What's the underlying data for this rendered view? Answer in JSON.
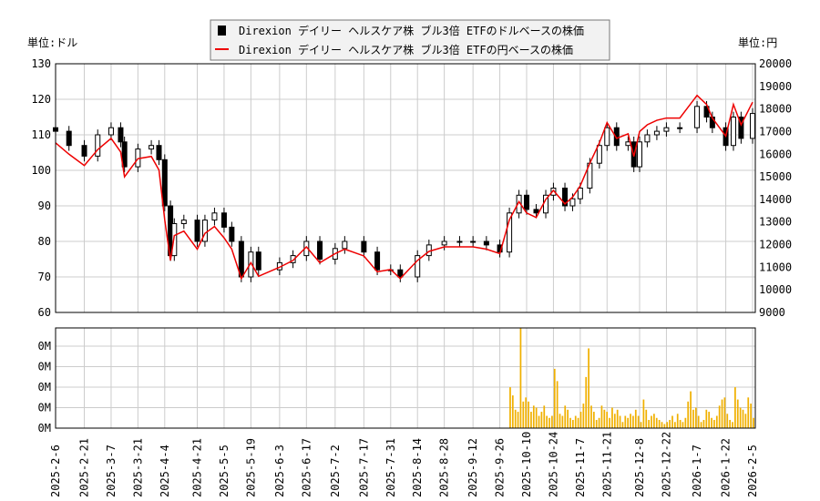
{
  "chart_data": [
    {
      "type": "candlestick+line",
      "title": "",
      "legend": [
        "Direxion デイリー ヘルスケア株 ブル3倍 ETFのドルベースの株価",
        "Direxion デイリー ヘルスケア株 ブル3倍 ETFの円ベースの株価"
      ],
      "legend_placement": "top-center",
      "ylabel_left": "単位:ドル",
      "ylabel_right": "単位:円",
      "ylim_left": [
        60,
        130
      ],
      "yticks_left": [
        "60",
        "70",
        "80",
        "90",
        "100",
        "110",
        "120",
        "130"
      ],
      "ylim_right": [
        9000,
        20000
      ],
      "yticks_right": [
        "9000",
        "10000",
        "11000",
        "12000",
        "13000",
        "14000",
        "15000",
        "16000",
        "17000",
        "18000",
        "19000",
        "20000"
      ],
      "grid": true,
      "dates": [
        "2025-2-6",
        "2025-2-13",
        "2025-2-21",
        "2025-2-28",
        "2025-3-7",
        "2025-3-12",
        "2025-3-14",
        "2025-3-21",
        "2025-3-28",
        "2025-4-1",
        "2025-4-4",
        "2025-4-7",
        "2025-4-9",
        "2025-4-14",
        "2025-4-21",
        "2025-4-25",
        "2025-4-30",
        "2025-5-5",
        "2025-5-9",
        "2025-5-14",
        "2025-5-19",
        "2025-5-23",
        "2025-6-3",
        "2025-6-10",
        "2025-6-17",
        "2025-6-24",
        "2025-7-2",
        "2025-7-7",
        "2025-7-17",
        "2025-7-24",
        "2025-7-31",
        "2025-8-5",
        "2025-8-14",
        "2025-8-20",
        "2025-8-28",
        "2025-9-5",
        "2025-9-12",
        "2025-9-19",
        "2025-9-26",
        "2025-10-1",
        "2025-10-6",
        "2025-10-10",
        "2025-10-15",
        "2025-10-20",
        "2025-10-24",
        "2025-10-30",
        "2025-11-3",
        "2025-11-7",
        "2025-11-12",
        "2025-11-17",
        "2025-11-21",
        "2025-11-26",
        "2025-12-2",
        "2025-12-5",
        "2025-12-8",
        "2025-12-12",
        "2025-12-17",
        "2025-12-22",
        "2025-12-29",
        "2026-1-7",
        "2026-1-12",
        "2026-1-15",
        "2026-1-22",
        "2026-1-26",
        "2026-1-30",
        "2026-2-5"
      ],
      "usd": [
        111,
        107,
        104,
        110,
        112,
        108,
        101,
        106,
        107,
        103,
        90,
        76,
        85,
        86,
        80,
        86,
        88,
        84,
        80,
        70,
        77,
        72,
        74,
        76,
        80,
        75,
        78,
        80,
        77,
        72,
        72,
        70,
        76,
        79,
        80,
        80,
        80,
        79,
        77,
        88,
        93,
        89,
        88,
        93,
        95,
        90,
        92,
        95,
        102,
        107,
        112,
        107,
        108,
        101,
        108,
        110,
        111,
        112,
        112,
        118,
        115,
        112,
        107,
        115,
        109,
        116
      ],
      "jpy": [
        16500,
        16000,
        15500,
        16200,
        16700,
        16100,
        15000,
        15800,
        15900,
        15300,
        13100,
        11300,
        12400,
        12600,
        11800,
        12500,
        12800,
        12300,
        11800,
        10500,
        11200,
        10600,
        11000,
        11300,
        11900,
        11200,
        11600,
        11800,
        11500,
        10800,
        10900,
        10500,
        11300,
        11700,
        11900,
        11900,
        11900,
        11800,
        11600,
        13100,
        13900,
        13400,
        13200,
        14000,
        14400,
        13800,
        14100,
        14600,
        15600,
        16500,
        17400,
        16700,
        16900,
        15900,
        17000,
        17300,
        17500,
        17600,
        17600,
        18600,
        18200,
        17600,
        16800,
        18200,
        17300,
        18300
      ],
      "xticks": [
        "2025-2-6",
        "2025-2-21",
        "2025-3-7",
        "2025-3-21",
        "2025-4-4",
        "2025-4-21",
        "2025-5-5",
        "2025-5-19",
        "2025-6-3",
        "2025-6-17",
        "2025-7-2",
        "2025-7-17",
        "2025-7-31",
        "2025-8-14",
        "2025-8-28",
        "2025-9-12",
        "2025-9-26",
        "2025-10-10",
        "2025-10-24",
        "2025-11-7",
        "2025-11-21",
        "2025-12-8",
        "2025-12-22",
        "2026-1-7",
        "2026-1-22",
        "2026-2-5"
      ]
    },
    {
      "type": "bar",
      "ylabel": "volume",
      "yticks": [
        "0M",
        "0M",
        "0M",
        "0M",
        "0M"
      ],
      "ylim": [
        0,
        4.9
      ],
      "start_date": "2025-10-1",
      "values": [
        2,
        1.6,
        0.9,
        0.8,
        4.9,
        1.3,
        1.5,
        1.3,
        0.8,
        1.1,
        1,
        0.6,
        0.8,
        1.1,
        0.6,
        0.5,
        0.6,
        2.9,
        2.3,
        0.7,
        0.6,
        1.1,
        0.9,
        0.5,
        0.4,
        0.6,
        0.5,
        0.8,
        1.2,
        2.5,
        3.9,
        1.1,
        0.8,
        0.4,
        0.5,
        1.1,
        0.9,
        0.8,
        0.5,
        1,
        0.7,
        0.9,
        0.6,
        0.3,
        0.6,
        0.5,
        0.7,
        0.6,
        0.9,
        0.6,
        0.3,
        1.4,
        0.9,
        0.4,
        0.6,
        0.7,
        0.5,
        0.4,
        0.3,
        0.2,
        0.3,
        0.4,
        0.6,
        0.3,
        0.7,
        0.4,
        0.3,
        0.5,
        1.3,
        1.8,
        0.9,
        1,
        0.6,
        0.3,
        0.4,
        0.9,
        0.8,
        0.5,
        0.4,
        0.6,
        1.1,
        1.4,
        1.5,
        0.7,
        0.4,
        0.3,
        2,
        1.4,
        1,
        0.9,
        0.7,
        1.5,
        1.2,
        0.5
      ]
    }
  ]
}
